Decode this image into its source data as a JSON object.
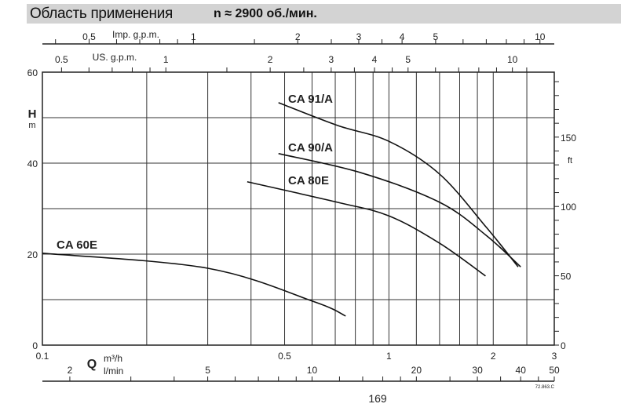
{
  "header": {
    "title": "Область применения",
    "speed": "n ≈ 2900 об./мин."
  },
  "page_number": "169",
  "figure_code": "72.863.C",
  "chart_data": {
    "type": "line",
    "x_scale": "log",
    "xlim": [
      0.1,
      3
    ],
    "ylim": [
      0,
      60
    ],
    "grid": true,
    "x_axes": {
      "m3h": {
        "label_q": "Q",
        "unit": "m³/h",
        "ticks": [
          0.1,
          0.5,
          1,
          2,
          3
        ],
        "tick_labels": [
          "0.1",
          "0.5",
          "1",
          "2",
          "3"
        ]
      },
      "lmin": {
        "unit": "l/min",
        "ticks": [
          2,
          5,
          10,
          20,
          30,
          40,
          50
        ],
        "tick_labels": [
          "2",
          "5",
          "10",
          "20",
          "30",
          "40",
          "50"
        ]
      },
      "us_gpm": {
        "unit": "US. g.p.m.",
        "ticks": [
          0.5,
          1,
          2,
          3,
          4,
          5,
          10
        ],
        "tick_labels": [
          "0.5",
          "1",
          "2",
          "3",
          "4",
          "5",
          "10"
        ]
      },
      "imp_gpm": {
        "unit": "Imp. g.p.m.",
        "ticks": [
          0.5,
          1,
          2,
          3,
          4,
          5,
          10
        ],
        "tick_labels": [
          "0.5",
          "1",
          "2",
          "3",
          "4",
          "5",
          "10"
        ]
      }
    },
    "y_axes": {
      "m": {
        "label": "H",
        "unit": "m",
        "ticks": [
          0,
          20,
          40,
          60
        ],
        "tick_labels": [
          "0",
          "20",
          "40",
          "60"
        ]
      },
      "ft": {
        "unit": "ft",
        "ticks": [
          0,
          50,
          100,
          150
        ],
        "tick_labels": [
          "0",
          "50",
          "100",
          "150"
        ]
      }
    },
    "series": [
      {
        "name": "CA 91/A",
        "x": [
          0.48,
          0.71,
          1.0,
          1.4,
          1.91,
          2.36
        ],
        "y": [
          53.3,
          48.3,
          44.8,
          37.6,
          25.9,
          17.2
        ]
      },
      {
        "name": "CA 90/A",
        "x": [
          0.48,
          0.83,
          1.4,
          1.91,
          2.4
        ],
        "y": [
          42.1,
          37.9,
          31.4,
          24.1,
          17.2
        ]
      },
      {
        "name": "CA 80E",
        "x": [
          0.39,
          0.71,
          1.0,
          1.4,
          1.9
        ],
        "y": [
          35.9,
          31.4,
          28.4,
          22.4,
          15.2
        ]
      },
      {
        "name": "CA 60E",
        "x": [
          0.1,
          0.3,
          0.61,
          0.75
        ],
        "y": [
          20.2,
          16.9,
          9.5,
          6.4
        ]
      }
    ]
  }
}
